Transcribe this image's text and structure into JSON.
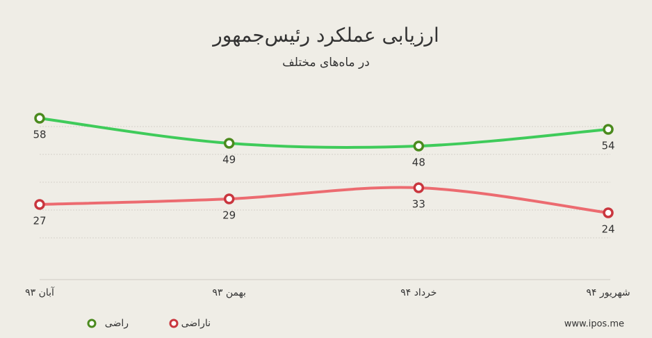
{
  "chart_data": {
    "type": "line",
    "title": "ارزیابی عملکرد رئیس‌جمهور",
    "subtitle": "در ماه‌های مختلف",
    "categories": [
      "آبان ۹۳",
      "بهمن ۹۳",
      "خرداد ۹۴",
      "شهریور ۹۴"
    ],
    "series": [
      {
        "name": "راضی",
        "color": "#3fcb5a",
        "marker_color": "#4b8a1e",
        "values": [
          58,
          49,
          48,
          54
        ]
      },
      {
        "name": "ناراضی",
        "color": "#ec6b70",
        "marker_color": "#c9363e",
        "values": [
          27,
          29,
          33,
          24
        ]
      }
    ],
    "ylim": [
      0,
      60
    ],
    "yticks": [
      0,
      15,
      25,
      35,
      45,
      55
    ],
    "grid": true,
    "smooth": true,
    "source": "www.ipos.me"
  }
}
